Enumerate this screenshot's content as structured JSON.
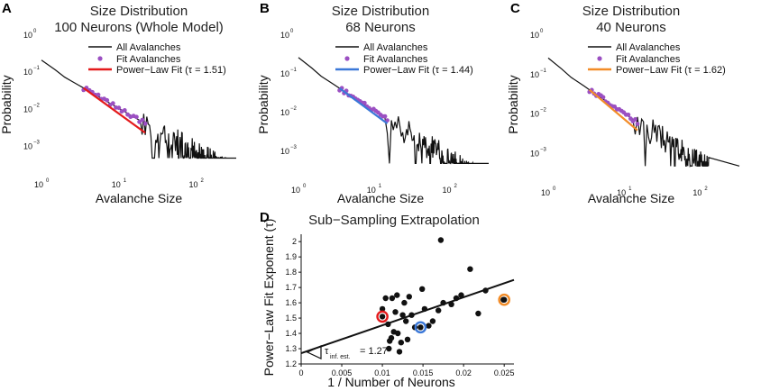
{
  "colors": {
    "black": "#111111",
    "fit_dots": "#9b4fc2",
    "fit_red": "#e41a1c",
    "fit_blue": "#3b78d8",
    "fit_orange": "#f28c28"
  },
  "chart_data": [
    {
      "panel": "A",
      "type": "line",
      "title_line1": "Size Distribution",
      "title_line2": "100 Neurons (Whole Model)",
      "xlabel": "Avalanche Size",
      "ylabel": "Probability",
      "xscale": "log",
      "yscale": "log",
      "xlim": [
        1,
        330
      ],
      "ylim": [
        0.0004,
        1
      ],
      "x_ticks": [
        {
          "v": 1,
          "base": "10",
          "exp": "0"
        },
        {
          "v": 10,
          "base": "10",
          "exp": "1"
        },
        {
          "v": 100,
          "base": "10",
          "exp": "2"
        }
      ],
      "y_ticks": [
        {
          "v": 1,
          "base": "10",
          "exp": "0"
        },
        {
          "v": 0.1,
          "base": "10",
          "exp": "−1"
        },
        {
          "v": 0.01,
          "base": "10",
          "exp": "−2"
        },
        {
          "v": 0.001,
          "base": "10",
          "exp": "−3"
        }
      ],
      "legend": [
        "All Avalanches",
        "Fit Avalanches",
        "Power−Law Fit (τ = 1.51)"
      ],
      "legend_position": "top-right",
      "fit_color_key": "fit_red",
      "tau": 1.51,
      "all_decay_exp": 1.2,
      "y_at_1": 0.16,
      "fit_range": [
        3.5,
        22
      ],
      "tail_start": 20,
      "max_size": 290
    },
    {
      "panel": "B",
      "type": "line",
      "title_line1": "Size Distribution",
      "title_line2": "68 Neurons",
      "xlabel": "Avalanche Size",
      "ylabel": "Probability",
      "xscale": "log",
      "yscale": "log",
      "xlim": [
        1,
        330
      ],
      "ylim": [
        0.0004,
        1
      ],
      "x_ticks": [
        {
          "v": 1,
          "base": "10",
          "exp": "0"
        },
        {
          "v": 10,
          "base": "10",
          "exp": "1"
        },
        {
          "v": 100,
          "base": "10",
          "exp": "2"
        }
      ],
      "y_ticks": [
        {
          "v": 1,
          "base": "10",
          "exp": "0"
        },
        {
          "v": 0.1,
          "base": "10",
          "exp": "−1"
        },
        {
          "v": 0.01,
          "base": "10",
          "exp": "−2"
        },
        {
          "v": 0.001,
          "base": "10",
          "exp": "−3"
        }
      ],
      "legend": [
        "All Avalanches",
        "Fit Avalanches",
        "Power−Law Fit (τ = 1.44)"
      ],
      "legend_position": "top-right",
      "fit_color_key": "fit_blue",
      "tau": 1.44,
      "all_decay_exp": 1.28,
      "y_at_1": 0.2,
      "fit_range": [
        3.5,
        15
      ],
      "tail_start": 15,
      "max_size": 220
    },
    {
      "panel": "C",
      "type": "line",
      "title_line1": "Size Distribution",
      "title_line2": "40 Neurons",
      "xlabel": "Avalanche Size",
      "ylabel": "Probability",
      "xscale": "log",
      "yscale": "log",
      "xlim": [
        1,
        330
      ],
      "ylim": [
        0.0004,
        1
      ],
      "x_ticks": [
        {
          "v": 1,
          "base": "10",
          "exp": "0"
        },
        {
          "v": 10,
          "base": "10",
          "exp": "1"
        },
        {
          "v": 100,
          "base": "10",
          "exp": "2"
        }
      ],
      "y_ticks": [
        {
          "v": 1,
          "base": "10",
          "exp": "0"
        },
        {
          "v": 0.1,
          "base": "10",
          "exp": "−1"
        },
        {
          "v": 0.01,
          "base": "10",
          "exp": "−2"
        },
        {
          "v": 0.001,
          "base": "10",
          "exp": "−3"
        }
      ],
      "legend": [
        "All Avalanches",
        "Fit Avalanches",
        "Power−Law Fit (τ = 1.62)"
      ],
      "legend_position": "top-right",
      "fit_color_key": "fit_orange",
      "tau": 1.62,
      "all_decay_exp": 1.3,
      "y_at_1": 0.2,
      "fit_range": [
        3.5,
        15
      ],
      "tail_start": 14,
      "max_size": 130
    },
    {
      "panel": "D",
      "type": "scatter",
      "title": "Sub−Sampling Extrapolation",
      "xlabel": "1 / Number of Neurons",
      "ylabel": "Power−Law Fit Exponent (τ)",
      "xlim": [
        0,
        0.0262
      ],
      "ylim": [
        1.2,
        2.06
      ],
      "x_ticks": [
        "0",
        "0.005",
        "0.01",
        "0.015",
        "0.02",
        "0.025"
      ],
      "x_tick_values": [
        0,
        0.005,
        0.01,
        0.015,
        0.02,
        0.025
      ],
      "y_ticks": [
        "1.2",
        "1.3",
        "1.4",
        "1.5",
        "1.6",
        "1.7",
        "1.8",
        "1.9",
        "2"
      ],
      "y_tick_values": [
        1.2,
        1.3,
        1.4,
        1.5,
        1.6,
        1.7,
        1.8,
        1.9,
        2.0
      ],
      "points": [
        [
          0.01,
          1.56
        ],
        [
          0.0104,
          1.63
        ],
        [
          0.0107,
          1.46
        ],
        [
          0.0108,
          1.3
        ],
        [
          0.0109,
          1.35
        ],
        [
          0.0111,
          1.37
        ],
        [
          0.0112,
          1.63
        ],
        [
          0.0114,
          1.41
        ],
        [
          0.0116,
          1.54
        ],
        [
          0.0118,
          1.65
        ],
        [
          0.0119,
          1.4
        ],
        [
          0.0121,
          1.28
        ],
        [
          0.0123,
          1.34
        ],
        [
          0.0125,
          1.52
        ],
        [
          0.0127,
          1.6
        ],
        [
          0.0129,
          1.48
        ],
        [
          0.0131,
          1.36
        ],
        [
          0.0133,
          1.64
        ],
        [
          0.0136,
          1.52
        ],
        [
          0.014,
          1.44
        ],
        [
          0.0149,
          1.69
        ],
        [
          0.0152,
          1.56
        ],
        [
          0.0157,
          1.45
        ],
        [
          0.0162,
          1.48
        ],
        [
          0.0169,
          1.55
        ],
        [
          0.0172,
          2.01
        ],
        [
          0.0175,
          1.6
        ],
        [
          0.0185,
          1.59
        ],
        [
          0.0191,
          1.63
        ],
        [
          0.0197,
          1.65
        ],
        [
          0.0208,
          1.82
        ],
        [
          0.0218,
          1.53
        ],
        [
          0.0227,
          1.68
        ],
        [
          0.0249,
          1.62
        ]
      ],
      "highlighted": [
        {
          "x": 0.01,
          "y": 1.51,
          "color_key": "fit_red"
        },
        {
          "x": 0.0147,
          "y": 1.44,
          "color_key": "fit_blue"
        },
        {
          "x": 0.025,
          "y": 1.62,
          "color_key": "fit_orange"
        }
      ],
      "regression": {
        "intercept": 1.27,
        "slope": 18.3
      },
      "annotation": {
        "tau_symbol": "τ",
        "subscript": "inf. est.",
        "value_text": "= 1.27"
      }
    }
  ]
}
